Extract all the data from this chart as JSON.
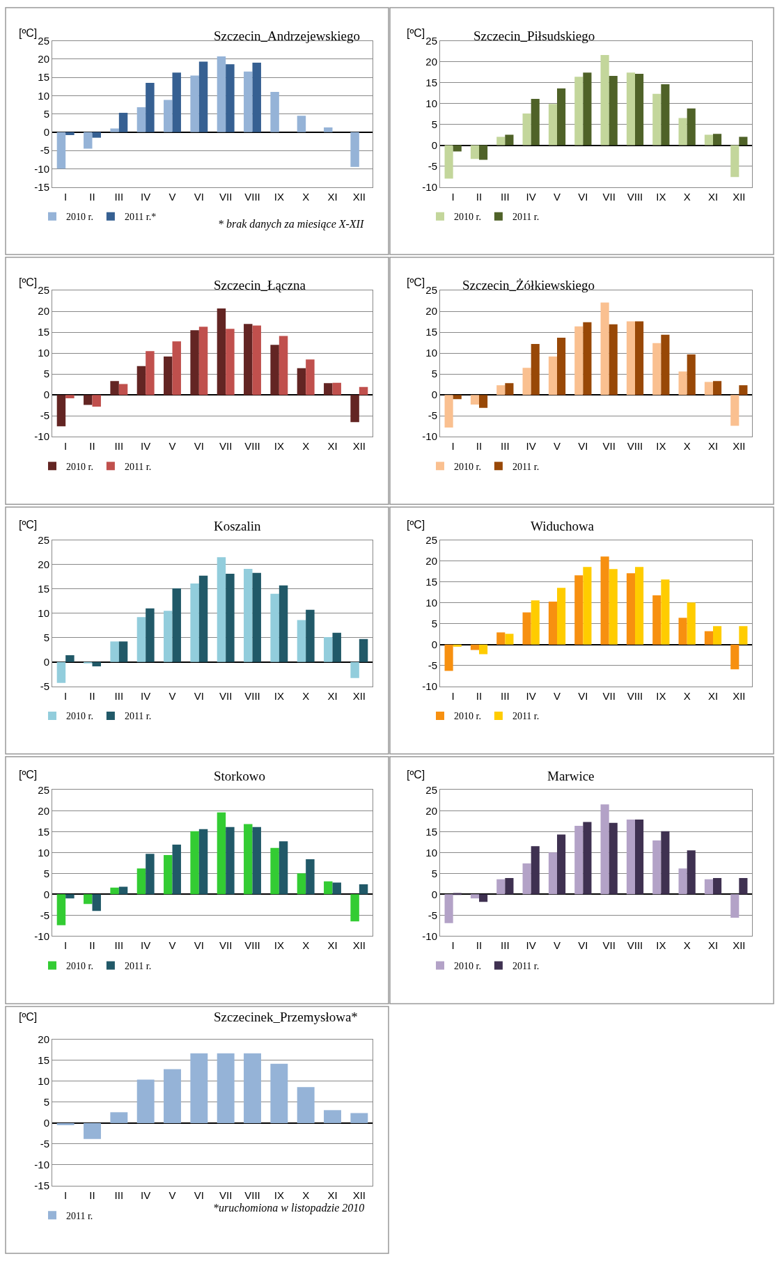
{
  "chart_data": [
    {
      "type": "bar",
      "title": "Szczecin_Andrzejewskiego",
      "ylabel": "[ºC]",
      "categories": [
        "I",
        "II",
        "III",
        "IV",
        "V",
        "VI",
        "VII",
        "VIII",
        "IX",
        "X",
        "XI",
        "XII"
      ],
      "ylim": [
        -15,
        25
      ],
      "yticks": [
        -15,
        -10,
        -5,
        0,
        5,
        10,
        15,
        20,
        25
      ],
      "grid": "y",
      "legend": "bottom",
      "annotations": [
        "* brak danych za miesiące X-XII"
      ],
      "series": [
        {
          "name": "2010 r.",
          "color": "#95b3d7",
          "values": [
            -10,
            -4.5,
            1,
            6.8,
            8.8,
            15.5,
            20.7,
            16.6,
            11,
            4.5,
            1.3,
            -9.5
          ]
        },
        {
          "name": "2011 r.*",
          "color": "#366092",
          "values": [
            -0.8,
            -1.5,
            5.3,
            13.5,
            16.3,
            19.3,
            18.6,
            19,
            null,
            null,
            null,
            null
          ]
        }
      ]
    },
    {
      "type": "bar",
      "title": "Szczecin_Piłsudskiego",
      "ylabel": "[ºC]",
      "categories": [
        "I",
        "II",
        "III",
        "IV",
        "V",
        "VI",
        "VII",
        "VIII",
        "IX",
        "X",
        "XI",
        "XII"
      ],
      "ylim": [
        -10,
        25
      ],
      "yticks": [
        -10,
        -5,
        0,
        5,
        10,
        15,
        20,
        25
      ],
      "grid": "y",
      "legend": "bottom",
      "series": [
        {
          "name": "2010 r.",
          "color": "#c3d69b",
          "values": [
            -8,
            -3.3,
            2,
            7.6,
            9.9,
            16.4,
            21.6,
            17.4,
            12.3,
            6.5,
            2.5,
            -7.6
          ]
        },
        {
          "name": "2011 r.",
          "color": "#4f6228",
          "values": [
            -1.5,
            -3.5,
            2.5,
            11.1,
            13.6,
            17.4,
            16.6,
            17.1,
            14.6,
            8.8,
            2.7,
            2.0
          ]
        }
      ]
    },
    {
      "type": "bar",
      "title": "Szczecin_Łączna",
      "ylabel": "[ºC]",
      "categories": [
        "I",
        "II",
        "III",
        "IV",
        "V",
        "VI",
        "VII",
        "VIII",
        "IX",
        "X",
        "XI",
        "XII"
      ],
      "ylim": [
        -10,
        25
      ],
      "yticks": [
        -10,
        -5,
        0,
        5,
        10,
        15,
        20,
        25
      ],
      "grid": "y",
      "legend": "bottom",
      "series": [
        {
          "name": "2010 r.",
          "color": "#632523",
          "values": [
            -7.5,
            -2.4,
            3.3,
            6.9,
            9.2,
            15.5,
            20.7,
            17.0,
            12.0,
            6.4,
            2.8,
            -6.5
          ]
        },
        {
          "name": "2011 r.",
          "color": "#c0504d",
          "values": [
            -0.8,
            -2.8,
            2.6,
            10.5,
            12.8,
            16.3,
            15.8,
            16.6,
            14.1,
            8.5,
            2.9,
            1.9
          ]
        }
      ]
    },
    {
      "type": "bar",
      "title": "Szczecin_Żółkiewskiego",
      "ylabel": "[ºC]",
      "categories": [
        "I",
        "II",
        "III",
        "IV",
        "V",
        "VI",
        "VII",
        "VIII",
        "IX",
        "X",
        "XI",
        "XII"
      ],
      "ylim": [
        -10,
        25
      ],
      "yticks": [
        -10,
        -5,
        0,
        5,
        10,
        15,
        20,
        25
      ],
      "grid": "y",
      "legend": "bottom",
      "series": [
        {
          "name": "2010 r.",
          "color": "#fac090",
          "values": [
            -7.8,
            -2.3,
            2.3,
            6.5,
            9.2,
            16.4,
            22.1,
            17.6,
            12.4,
            5.6,
            3.1,
            -7.4
          ]
        },
        {
          "name": "2011 r.",
          "color": "#984807",
          "values": [
            -1.0,
            -3.1,
            2.8,
            12.2,
            13.7,
            17.4,
            16.9,
            17.6,
            14.4,
            9.7,
            3.3,
            2.3
          ]
        }
      ]
    },
    {
      "type": "bar",
      "title": "Koszalin",
      "ylabel": "[ºC]",
      "categories": [
        "I",
        "II",
        "III",
        "IV",
        "V",
        "VI",
        "VII",
        "VIII",
        "IX",
        "X",
        "XI",
        "XII"
      ],
      "ylim": [
        -5,
        25
      ],
      "yticks": [
        -5,
        0,
        5,
        10,
        15,
        20,
        25
      ],
      "grid": "y",
      "legend": "bottom",
      "series": [
        {
          "name": "2010 r.",
          "color": "#92cddc",
          "values": [
            -4.3,
            -0.3,
            4.2,
            9.2,
            10.5,
            16.1,
            21.5,
            19.1,
            14.0,
            8.6,
            5.1,
            -3.3
          ]
        },
        {
          "name": "2011 r.",
          "color": "#215968",
          "values": [
            1.4,
            -0.9,
            4.2,
            11.0,
            15.1,
            17.7,
            18.1,
            18.3,
            15.7,
            10.7,
            6.0,
            4.7
          ]
        }
      ]
    },
    {
      "type": "bar",
      "title": "Widuchowa",
      "ylabel": "[ºC]",
      "categories": [
        "I",
        "II",
        "III",
        "IV",
        "V",
        "VI",
        "VII",
        "VIII",
        "IX",
        "X",
        "XI",
        "XII"
      ],
      "ylim": [
        -10,
        25
      ],
      "yticks": [
        -10,
        -5,
        0,
        5,
        10,
        15,
        20,
        25
      ],
      "grid": "y",
      "legend": "bottom",
      "series": [
        {
          "name": "2010 r.",
          "color": "#f79010",
          "values": [
            -6.3,
            -1.3,
            2.9,
            7.7,
            10.3,
            16.6,
            21.1,
            17.1,
            11.8,
            6.4,
            3.2,
            -5.9
          ]
        },
        {
          "name": "2011 r.",
          "color": "#ffcc00",
          "values": [
            -0.5,
            -2.3,
            2.6,
            10.6,
            13.6,
            18.6,
            18.1,
            18.6,
            15.6,
            10.1,
            4.4,
            4.4
          ]
        }
      ]
    },
    {
      "type": "bar",
      "title": "Storkowo",
      "ylabel": "[ºC]",
      "categories": [
        "I",
        "II",
        "III",
        "IV",
        "V",
        "VI",
        "VII",
        "VIII",
        "IX",
        "X",
        "XI",
        "XII"
      ],
      "ylim": [
        -10,
        25
      ],
      "yticks": [
        -10,
        -5,
        0,
        5,
        10,
        15,
        20,
        25
      ],
      "grid": "y",
      "legend": "bottom",
      "series": [
        {
          "name": "2010 r.",
          "color": "#33cc33",
          "values": [
            -7.4,
            -2.3,
            1.6,
            6.2,
            9.4,
            15.1,
            19.6,
            16.8,
            11.1,
            5.0,
            3.1,
            -6.5
          ]
        },
        {
          "name": "2011 r.",
          "color": "#215968",
          "values": [
            -1.0,
            -4.0,
            1.8,
            9.7,
            11.9,
            15.6,
            16.1,
            16.1,
            12.7,
            8.4,
            2.8,
            2.4
          ]
        }
      ]
    },
    {
      "type": "bar",
      "title": "Marwice",
      "ylabel": "[ºC]",
      "categories": [
        "I",
        "II",
        "III",
        "IV",
        "V",
        "VI",
        "VII",
        "VIII",
        "IX",
        "X",
        "XI",
        "XII"
      ],
      "ylim": [
        -10,
        25
      ],
      "yticks": [
        -10,
        -5,
        0,
        5,
        10,
        15,
        20,
        25
      ],
      "grid": "y",
      "legend": "bottom",
      "series": [
        {
          "name": "2010 r.",
          "color": "#b3a2c7",
          "values": [
            -6.9,
            -1.0,
            3.6,
            7.4,
            10.0,
            16.4,
            21.5,
            17.9,
            12.9,
            6.2,
            3.6,
            -5.6
          ]
        },
        {
          "name": "2011 r.",
          "color": "#3f3151",
          "values": [
            0.3,
            -1.8,
            3.9,
            11.5,
            14.3,
            17.3,
            17.1,
            17.9,
            15.1,
            10.5,
            3.9,
            3.9
          ]
        }
      ]
    },
    {
      "type": "bar",
      "title": "Szczecinek_Przemysłowa*",
      "ylabel": "[ºC]",
      "categories": [
        "I",
        "II",
        "III",
        "IV",
        "V",
        "VI",
        "VII",
        "VIII",
        "IX",
        "X",
        "XI",
        "XII"
      ],
      "ylim": [
        -15,
        20
      ],
      "yticks": [
        -15,
        -10,
        -5,
        0,
        5,
        10,
        15,
        20
      ],
      "grid": "y",
      "legend": "bottom",
      "annotations": [
        "*uruchomiona w listopadzie 2010"
      ],
      "series": [
        {
          "name": "2011 r.",
          "color": "#95b3d7",
          "values": [
            -0.5,
            -3.8,
            2.6,
            10.4,
            12.9,
            16.7,
            16.7,
            16.7,
            14.2,
            8.6,
            3.1,
            2.4
          ]
        }
      ]
    }
  ]
}
